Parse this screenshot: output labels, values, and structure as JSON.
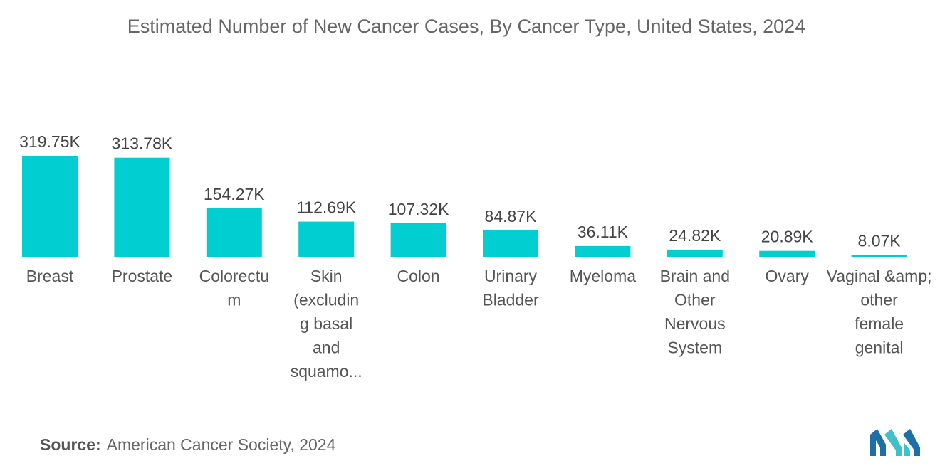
{
  "chart_data": {
    "type": "bar",
    "title": "Estimated Number of New Cancer Cases, By Cancer Type, United States, 2024",
    "categories": [
      "Breast",
      "Prostate",
      "Colorectum",
      "Skin (excluding basal and squamous)",
      "Colon",
      "Urinary Bladder",
      "Myeloma",
      "Brain and Other Nervous System",
      "Ovary",
      "Vaginal &amp; other female genital"
    ],
    "category_lines": [
      [
        "Breast"
      ],
      [
        "Prostate"
      ],
      [
        "Colorectu",
        "m"
      ],
      [
        "Skin",
        "(excludin",
        "g basal",
        "and",
        "squamo..."
      ],
      [
        "Colon"
      ],
      [
        "Urinary",
        "Bladder"
      ],
      [
        "Myeloma"
      ],
      [
        "Brain and",
        "Other",
        "Nervous",
        "System"
      ],
      [
        "Ovary"
      ],
      [
        "Vaginal &amp;",
        "other",
        "female",
        "genital"
      ]
    ],
    "values": [
      319750,
      313780,
      154270,
      112690,
      107320,
      84870,
      36110,
      24820,
      20890,
      8070
    ],
    "value_labels": [
      "319.75K",
      "313.78K",
      "154.27K",
      "112.69K",
      "107.32K",
      "84.87K",
      "36.11K",
      "24.82K",
      "20.89K",
      "8.07K"
    ],
    "xlabel": "",
    "ylabel": "",
    "ylim": [
      0,
      319750
    ],
    "grid": false,
    "legend": "none",
    "bar_color": "#00CED1"
  },
  "source": {
    "label": "Source:",
    "text": "American Cancer Society, 2024"
  },
  "logo": {
    "icon": "mordor-intelligence-logo-icon",
    "color_dark": "#1E6FA8",
    "color_light": "#3FC1C9"
  }
}
